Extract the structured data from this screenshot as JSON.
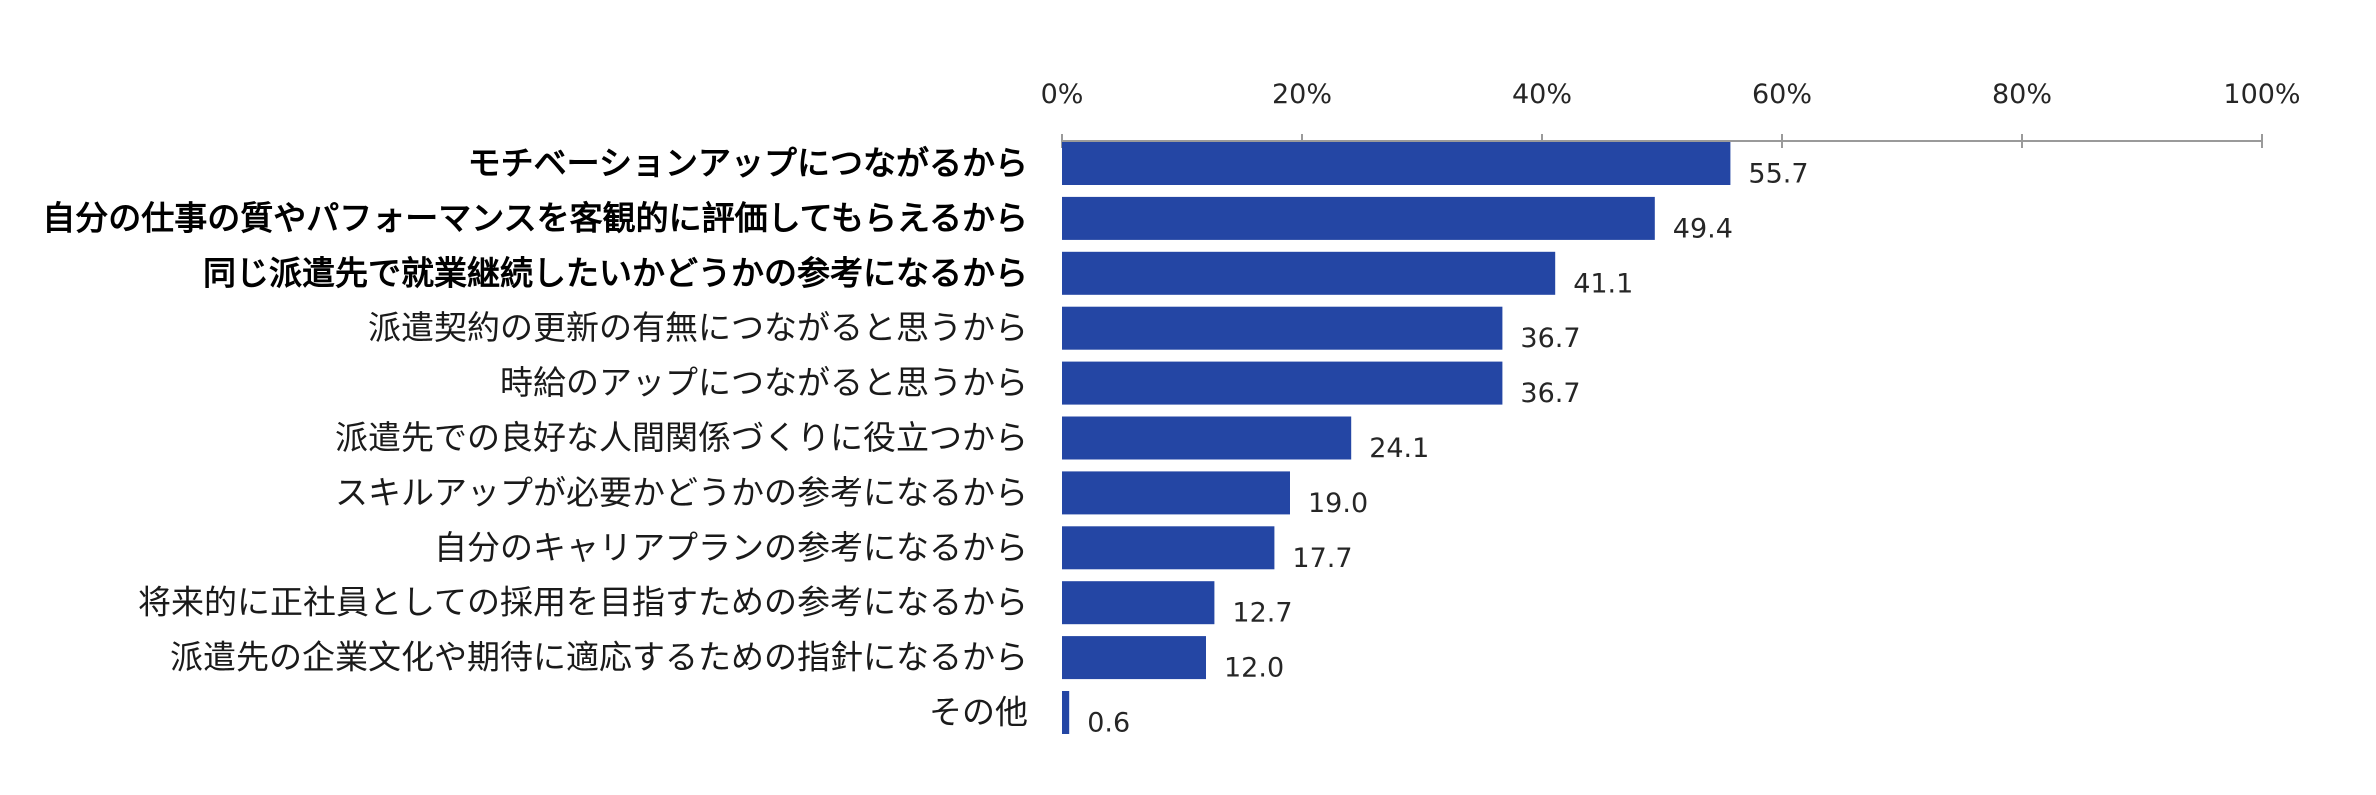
{
  "chart_data": {
    "type": "bar",
    "orientation": "horizontal",
    "categories": [
      "モチベーションアップにつながるから",
      "自分の仕事の質やパフォーマンスを客観的に評価してもらえるから",
      "同じ派遣先で就業継続したいかどうかの参考になるから",
      "派遣契約の更新の有無につながると思うから",
      "時給のアップにつながると思うから",
      "派遣先での良好な人間関係づくりに役立つから",
      "スキルアップが必要かどうかの参考になるから",
      "自分のキャリアプランの参考になるから",
      "将来的に正社員としての採用を目指すための参考になるから",
      "派遣先の企業文化や期待に適応するための指針になるから",
      "その他"
    ],
    "values": [
      55.7,
      49.4,
      41.1,
      36.7,
      36.7,
      24.1,
      19.0,
      17.7,
      12.7,
      12.0,
      0.6
    ],
    "value_labels": [
      "55.7",
      "49.4",
      "41.1",
      "36.7",
      "36.7",
      "24.1",
      "19.0",
      "17.7",
      "12.7",
      "12.0",
      "0.6"
    ],
    "bold_categories": [
      0,
      1,
      2
    ],
    "xlim": [
      0,
      100
    ],
    "xticks": [
      0,
      20,
      40,
      60,
      80,
      100
    ],
    "xtick_labels": [
      "0%",
      "20%",
      "40%",
      "60%",
      "80%",
      "100%"
    ],
    "axis_position": "top",
    "grid": false,
    "bar_color": "#2446A4",
    "axis_color": "#9a9a9a",
    "title": "",
    "xlabel": "",
    "ylabel": ""
  }
}
